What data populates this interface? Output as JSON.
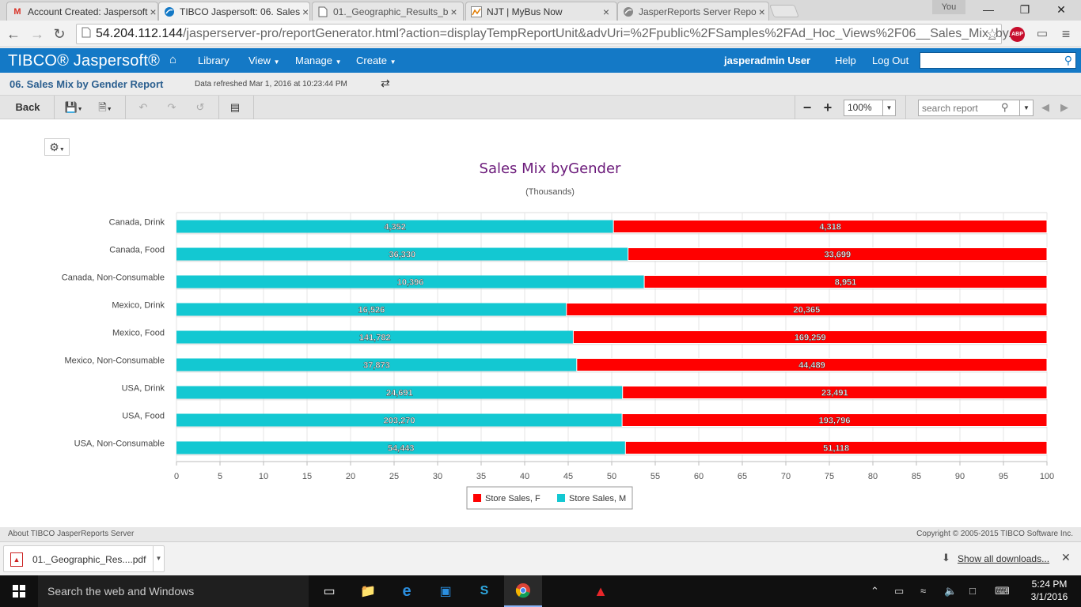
{
  "browser": {
    "tabs": [
      {
        "title": "Account Created: Jaspersoft",
        "icon": "gmail-icon",
        "active": false
      },
      {
        "title": "TIBCO Jaspersoft: 06. Sales",
        "icon": "jaspersoft-icon",
        "active": true
      },
      {
        "title": "01._Geographic_Results_b",
        "icon": "document-icon",
        "active": false
      },
      {
        "title": "NJT | MyBus Now",
        "icon": "njt-icon",
        "active": false
      },
      {
        "title": "JasperReports Server Repo",
        "icon": "jaspersoft-icon",
        "active": false
      }
    ],
    "user_badge": "You",
    "url_host": "54.204.112.144",
    "url_path": "/jasperserver-pro/reportGenerator.html?action=displayTempReportUnit&advUri=%2Fpublic%2FSamples%2FAd_Hoc_Views%2F06__Sales_Mix_by..",
    "abp_label": "ABP"
  },
  "app": {
    "logo": "TIBCO® Jaspersoft®",
    "menu": {
      "library": "Library",
      "view": "View",
      "manage": "Manage",
      "create": "Create"
    },
    "user": "jasperadmin User",
    "help": "Help",
    "logout": "Log Out",
    "search_placeholder": ""
  },
  "report": {
    "title": "06. Sales Mix by Gender Report",
    "refreshed": "Data refreshed Mar 1, 2016 at 10:23:44 PM",
    "back": "Back",
    "zoom": "100%",
    "search_placeholder": "search report"
  },
  "chart_data": {
    "type": "bar",
    "orientation": "horizontal",
    "stacking": "percent",
    "title": "Sales Mix byGender",
    "subtitle": "(Thousands)",
    "categories": [
      "Canada, Drink",
      "Canada, Food",
      "Canada, Non-Consumable",
      "Mexico, Drink",
      "Mexico, Food",
      "Mexico, Non-Consumable",
      "USA, Drink",
      "USA, Food",
      "USA, Non-Consumable"
    ],
    "series": [
      {
        "name": "Store Sales, M",
        "color": "#13c8d2",
        "values": [
          4352,
          36330,
          10396,
          16526,
          141782,
          37873,
          24691,
          203270,
          54443
        ]
      },
      {
        "name": "Store Sales, F",
        "color": "#ff0000",
        "values": [
          4318,
          33699,
          8951,
          20365,
          169259,
          44489,
          23491,
          193796,
          51118
        ]
      }
    ],
    "labels": {
      "m": [
        "4,352",
        "36,330",
        "10,396",
        "16,526",
        "141,782",
        "37,873",
        "24,691",
        "203,270",
        "54,443"
      ],
      "f": [
        "4,318",
        "33,699",
        "8,951",
        "20,365",
        "169,259",
        "44,489",
        "23,491",
        "193,796",
        "51,118"
      ]
    },
    "xlim": [
      0,
      100
    ],
    "xticks": [
      0,
      5,
      10,
      15,
      20,
      25,
      30,
      35,
      40,
      45,
      50,
      55,
      60,
      65,
      70,
      75,
      80,
      85,
      90,
      95,
      100
    ],
    "legend": {
      "position": "bottom",
      "entries": [
        "Store Sales, F",
        "Store Sales, M"
      ]
    }
  },
  "footer": {
    "about": "About TIBCO JasperReports Server",
    "copyright": "Copyright © 2005-2015 TIBCO Software Inc."
  },
  "downloads": {
    "file": "01._Geographic_Res....pdf",
    "show_all": "Show all downloads..."
  },
  "taskbar": {
    "search": "Search the web and Windows",
    "time": "5:24 PM",
    "date": "3/1/2016"
  }
}
